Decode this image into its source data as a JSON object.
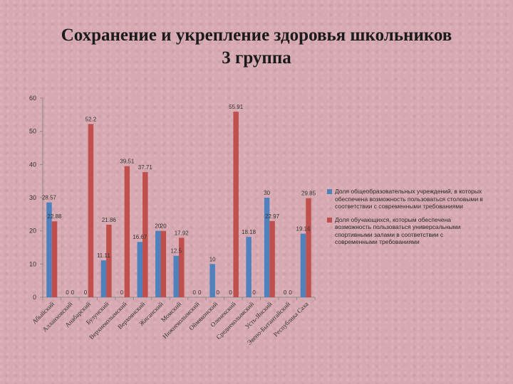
{
  "slide": {
    "title_line1": "Сохранение и укрепление здоровья школьников",
    "title_line2": "3 группа"
  },
  "colors": {
    "series1": "#4f81bd",
    "series2": "#c0504d",
    "axis": "#8c8c8c",
    "text": "#333333"
  },
  "chart_data": {
    "type": "bar",
    "title": "",
    "xlabel": "",
    "ylabel": "",
    "ylim": [
      0,
      60
    ],
    "yticks": [
      0,
      10,
      20,
      30,
      40,
      50,
      60
    ],
    "grid": false,
    "legend_position": "right",
    "categories": [
      "Абыйский",
      "Аллаиховский",
      "Анабарский",
      "Булунский",
      "Верхнеколымский",
      "Верхоянский",
      "Жиганский",
      "Момский",
      "Нижнеколымский",
      "Оймяконский",
      "Оленекский",
      "Среднеколымский",
      "Усть-Янский",
      "Эвено-Бытантайский",
      "Республика Саха"
    ],
    "series": [
      {
        "name": "Доля общеобразовательных учреждений, в которых обеспечена возможность пользоваться столовыми в соответствии с современными требованиями",
        "values": [
          28.57,
          0,
          0,
          11.11,
          0,
          16.67,
          20,
          12.5,
          0,
          10,
          0,
          18.18,
          30,
          0,
          19.16
        ],
        "labels": [
          "28.57",
          "0",
          "0",
          "11.11",
          "0",
          "16.67",
          "20",
          "12.5",
          "0",
          "10",
          "0",
          "18.18",
          "30",
          "0",
          "19.16"
        ]
      },
      {
        "name": "Доля обучающихся, которым обеспечена возможность пользоваться универсальными спортивными залами в соответствии с современными требованиями",
        "values": [
          22.88,
          0,
          52.2,
          21.86,
          39.51,
          37.71,
          20,
          17.92,
          0,
          0,
          55.91,
          0,
          22.97,
          0,
          29.85
        ],
        "labels": [
          "22.88",
          "0",
          "52.2",
          "21.86",
          "39.51",
          "37.71",
          "20",
          "17.92",
          "0",
          "0",
          "55.91",
          "0",
          "22.97",
          "0",
          "29.85"
        ]
      }
    ]
  }
}
